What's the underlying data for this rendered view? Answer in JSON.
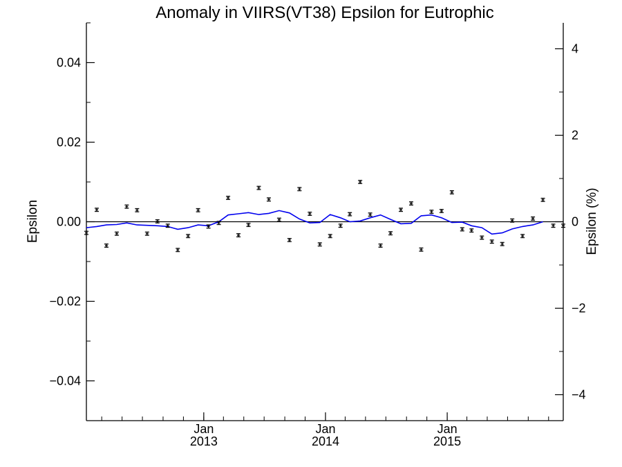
{
  "chart_data": {
    "type": "scatter",
    "title": "Anomaly in VIIRS(VT38) Epsilon for Eutrophic",
    "ylabel": "Epsilon",
    "ylabel_right": "Epsilon (%)",
    "xlabel": "",
    "ylim": [
      -0.05,
      0.05
    ],
    "ylim_right": [
      -4.6,
      4.6
    ],
    "xlim": [
      "2012-01-15",
      "2015-12-15"
    ],
    "y_ticks": [
      -0.04,
      -0.02,
      0.0,
      0.02,
      0.04
    ],
    "y_tick_labels": [
      "−0.04",
      "−0.02",
      "0.00",
      "0.02",
      "0.04"
    ],
    "y_right_ticks": [
      -4,
      -2,
      0,
      2,
      4
    ],
    "y_right_tick_labels": [
      "−4",
      "−2",
      "0",
      "2",
      "4"
    ],
    "x_ticks": [
      {
        "date": "2013-01-01",
        "month": "Jan",
        "year": "2013"
      },
      {
        "date": "2014-01-01",
        "month": "Jan",
        "year": "2014"
      },
      {
        "date": "2015-01-01",
        "month": "Jan",
        "year": "2015"
      }
    ],
    "zero_line": true,
    "grid": false,
    "colors": {
      "points": "#000000",
      "trend": "#0000ee",
      "axes": "#000000"
    },
    "series": [
      {
        "kind": "points_with_errorbars",
        "x": [
          "2012-01-15",
          "2012-02-15",
          "2012-03-15",
          "2012-04-15",
          "2012-05-15",
          "2012-06-15",
          "2012-07-15",
          "2012-08-15",
          "2012-09-15",
          "2012-10-15",
          "2012-11-15",
          "2012-12-15",
          "2013-01-15",
          "2013-02-15",
          "2013-03-15",
          "2013-04-15",
          "2013-05-15",
          "2013-06-15",
          "2013-07-15",
          "2013-08-15",
          "2013-09-15",
          "2013-10-15",
          "2013-11-15",
          "2013-12-15",
          "2014-01-15",
          "2014-02-15",
          "2014-03-15",
          "2014-04-15",
          "2014-05-15",
          "2014-06-15",
          "2014-07-15",
          "2014-08-15",
          "2014-09-15",
          "2014-10-15",
          "2014-11-15",
          "2014-12-15",
          "2015-01-15",
          "2015-02-15",
          "2015-03-15",
          "2015-04-15",
          "2015-05-15",
          "2015-06-15",
          "2015-07-15",
          "2015-08-15",
          "2015-09-15",
          "2015-10-15",
          "2015-11-15",
          "2015-12-15"
        ],
        "y": [
          -0.0028,
          0.003,
          -0.006,
          -0.003,
          0.0038,
          0.0029,
          -0.003,
          0.0001,
          -0.001,
          -0.0071,
          -0.0036,
          0.0029,
          -0.0012,
          -0.0003,
          0.006,
          -0.0034,
          -0.0008,
          0.0085,
          0.0056,
          0.0005,
          -0.0046,
          0.0082,
          0.002,
          -0.0057,
          -0.0036,
          -0.001,
          0.0019,
          0.01,
          0.0018,
          -0.006,
          -0.0029,
          0.003,
          0.0046,
          -0.007,
          0.0025,
          0.0027,
          0.0074,
          -0.0019,
          -0.0022,
          -0.004,
          -0.005,
          -0.0056,
          0.0003,
          -0.0036,
          0.0008,
          0.0055,
          -0.001,
          -0.001
        ],
        "error": 0.0004
      },
      {
        "kind": "line",
        "x": [
          "2012-01-15",
          "2012-02-15",
          "2012-03-15",
          "2012-04-15",
          "2012-05-15",
          "2012-06-15",
          "2012-07-15",
          "2012-08-15",
          "2012-09-15",
          "2012-10-15",
          "2012-11-15",
          "2012-12-15",
          "2013-01-15",
          "2013-02-15",
          "2013-03-15",
          "2013-04-15",
          "2013-05-15",
          "2013-06-15",
          "2013-07-15",
          "2013-08-15",
          "2013-09-15",
          "2013-10-15",
          "2013-11-15",
          "2013-12-15",
          "2014-01-15",
          "2014-02-15",
          "2014-03-15",
          "2014-04-15",
          "2014-05-15",
          "2014-06-15",
          "2014-07-15",
          "2014-08-15",
          "2014-09-15",
          "2014-10-15",
          "2014-11-15",
          "2014-12-15",
          "2015-01-15",
          "2015-02-15",
          "2015-03-15",
          "2015-04-15",
          "2015-05-15",
          "2015-06-15",
          "2015-07-15",
          "2015-08-15",
          "2015-09-15",
          "2015-10-15"
        ],
        "y": [
          -0.0015,
          -0.0012,
          -0.0008,
          -0.0007,
          -0.0003,
          -0.0008,
          -0.0009,
          -0.001,
          -0.0012,
          -0.0019,
          -0.0015,
          -0.0008,
          -0.001,
          0.0,
          0.0017,
          0.002,
          0.0023,
          0.0018,
          0.0021,
          0.0028,
          0.0022,
          0.0007,
          -0.0003,
          -0.0002,
          0.0018,
          0.001,
          0.0,
          0.0002,
          0.001,
          0.0017,
          0.0006,
          -0.0005,
          -0.0004,
          0.0015,
          0.0017,
          0.001,
          -0.0002,
          -0.0001,
          -0.001,
          -0.0015,
          -0.0031,
          -0.0028,
          -0.0018,
          -0.0012,
          -0.0008,
          0.0
        ]
      }
    ]
  }
}
